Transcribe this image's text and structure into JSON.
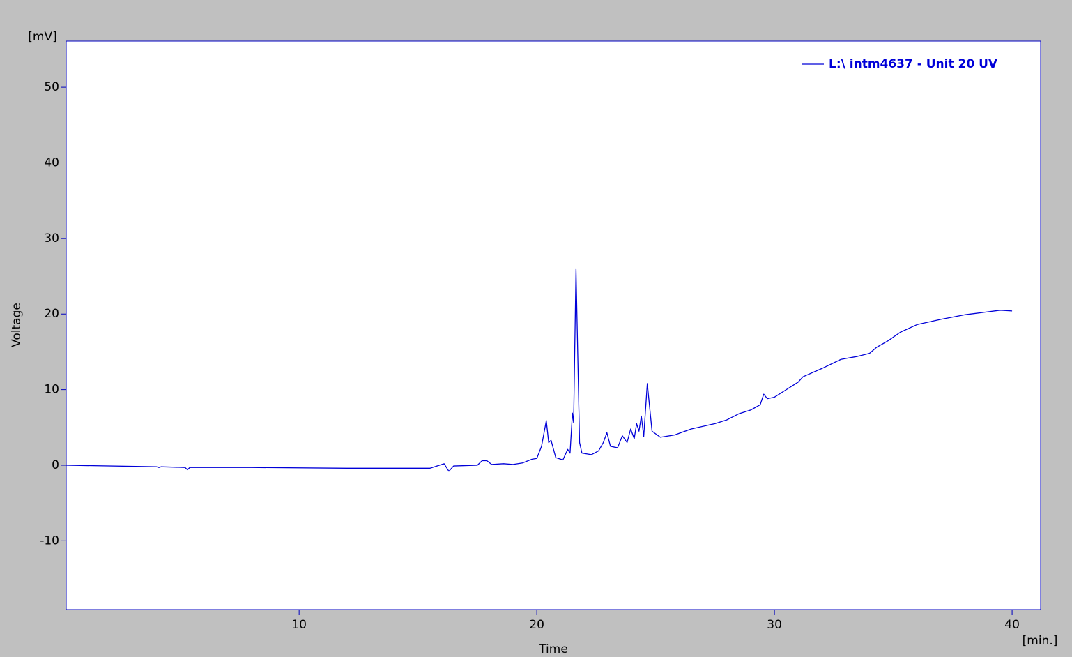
{
  "chart_data": {
    "type": "line",
    "x_label": "Time",
    "y_label": "Voltage",
    "y_unit": "[mV]",
    "x_unit": "[min.]",
    "xlim": [
      0.2,
      41.2
    ],
    "ylim": [
      -19.1,
      56.1
    ],
    "xticks": [
      10,
      20,
      30,
      40
    ],
    "yticks": [
      -10,
      0,
      10,
      20,
      30,
      40,
      50
    ],
    "legend": "upper right",
    "x": [
      0.2,
      4,
      4.1,
      4.2,
      5.2,
      5.3,
      5.4,
      8,
      12,
      15.5,
      16.1,
      16.3,
      16.5,
      17.5,
      17.7,
      17.9,
      18.1,
      18.6,
      19,
      19.4,
      19.8,
      20,
      20.2,
      20.4,
      20.5,
      20.6,
      20.8,
      21.1,
      21.3,
      21.4,
      21.5,
      21.55,
      21.65,
      21.8,
      21.9,
      22.3,
      22.6,
      22.8,
      22.95,
      23.1,
      23.4,
      23.6,
      23.8,
      23.95,
      24.1,
      24.2,
      24.3,
      24.4,
      24.5,
      24.65,
      24.85,
      25.2,
      25.8,
      26.5,
      27.5,
      28,
      28.5,
      29,
      29.4,
      29.55,
      29.7,
      30,
      30.5,
      31,
      31.2,
      32,
      32.8,
      33.5,
      34,
      34.3,
      34.8,
      35.3,
      36,
      37,
      38,
      39,
      39.5,
      40
    ],
    "series": [
      {
        "name": "L:\\ intm4637 - Unit 20 UV",
        "color": "#0000d8",
        "values": [
          0.0,
          -0.2,
          -0.3,
          -0.2,
          -0.3,
          -0.6,
          -0.3,
          -0.3,
          -0.4,
          -0.4,
          0.2,
          -0.8,
          -0.1,
          0.0,
          0.6,
          0.6,
          0.1,
          0.2,
          0.1,
          0.3,
          0.8,
          0.9,
          2.5,
          5.9,
          3.0,
          3.3,
          1.0,
          0.7,
          2.1,
          1.6,
          6.9,
          5.6,
          26.0,
          3.0,
          1.6,
          1.4,
          1.9,
          3.0,
          4.3,
          2.5,
          2.3,
          3.9,
          3.0,
          4.8,
          3.5,
          5.5,
          4.5,
          6.5,
          3.8,
          10.8,
          4.5,
          3.7,
          4.0,
          4.8,
          5.5,
          6.0,
          6.8,
          7.3,
          8.0,
          9.4,
          8.8,
          9.0,
          10.0,
          11.0,
          11.7,
          12.8,
          14.0,
          14.4,
          14.8,
          15.6,
          16.5,
          17.6,
          18.6,
          19.3,
          19.9,
          20.3,
          20.5,
          20.4
        ]
      }
    ]
  }
}
